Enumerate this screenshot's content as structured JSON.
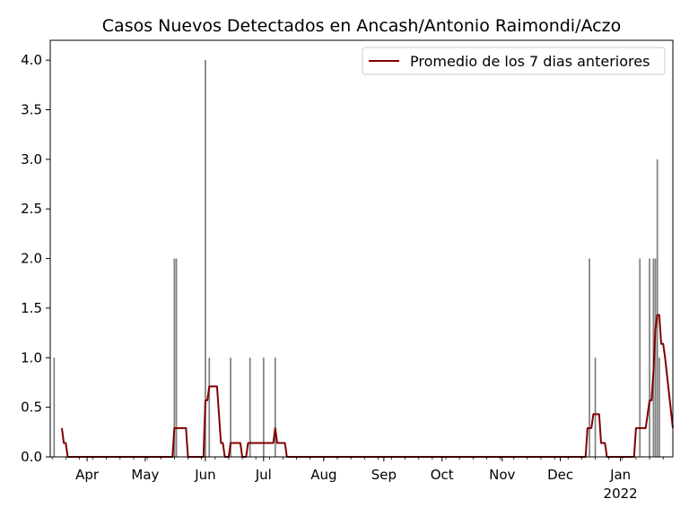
{
  "chart_data": {
    "type": "bar",
    "title": "Casos Nuevos Detectados en Ancash/Antonio Raimondi/Aczo",
    "xlabel": "",
    "ylabel": "",
    "ylim": [
      0,
      4.2
    ],
    "xlim": [
      "2021-03-13",
      "2022-01-28"
    ],
    "y_ticks": [
      "0.0",
      "0.5",
      "1.0",
      "1.5",
      "2.0",
      "2.5",
      "3.0",
      "3.5",
      "4.0"
    ],
    "x_ticks": [
      {
        "date": "2021-04-01",
        "label": "Apr"
      },
      {
        "date": "2021-05-01",
        "label": "May"
      },
      {
        "date": "2021-06-01",
        "label": "Jun"
      },
      {
        "date": "2021-07-01",
        "label": "Jul"
      },
      {
        "date": "2021-08-01",
        "label": "Aug"
      },
      {
        "date": "2021-09-01",
        "label": "Sep"
      },
      {
        "date": "2021-10-01",
        "label": "Oct"
      },
      {
        "date": "2021-11-01",
        "label": "Nov"
      },
      {
        "date": "2021-12-01",
        "label": "Dec"
      },
      {
        "date": "2022-01-01",
        "label": "Jan\n2022"
      }
    ],
    "legend": {
      "position": "top-right",
      "label": "Promedio de los 7 dias anteriores"
    },
    "colors": {
      "bars": "#808080",
      "line": "#800000"
    },
    "bars": [
      {
        "x": "2021-03-15",
        "y": 1
      },
      {
        "x": "2021-05-16",
        "y": 2
      },
      {
        "x": "2021-05-17",
        "y": 2
      },
      {
        "x": "2021-06-01",
        "y": 4
      },
      {
        "x": "2021-06-03",
        "y": 1
      },
      {
        "x": "2021-06-14",
        "y": 1
      },
      {
        "x": "2021-06-24",
        "y": 1
      },
      {
        "x": "2021-07-01",
        "y": 1
      },
      {
        "x": "2021-07-07",
        "y": 1
      },
      {
        "x": "2021-12-16",
        "y": 2
      },
      {
        "x": "2021-12-19",
        "y": 1
      },
      {
        "x": "2022-01-11",
        "y": 2
      },
      {
        "x": "2022-01-16",
        "y": 2
      },
      {
        "x": "2022-01-18",
        "y": 2
      },
      {
        "x": "2022-01-19",
        "y": 2
      },
      {
        "x": "2022-01-20",
        "y": 3
      },
      {
        "x": "2022-01-21",
        "y": 1
      }
    ],
    "series": [
      {
        "name": "Promedio de los 7 dias anteriores",
        "x": [
          "2021-03-19",
          "2021-03-20",
          "2021-03-21",
          "2021-03-22",
          "2021-05-15",
          "2021-05-16",
          "2021-05-22",
          "2021-05-23",
          "2021-05-31",
          "2021-06-01",
          "2021-06-02",
          "2021-06-03",
          "2021-06-07",
          "2021-06-08",
          "2021-06-09",
          "2021-06-10",
          "2021-06-11",
          "2021-06-13",
          "2021-06-14",
          "2021-06-19",
          "2021-06-20",
          "2021-06-22",
          "2021-06-23",
          "2021-06-24",
          "2021-07-06",
          "2021-07-07",
          "2021-07-08",
          "2021-07-12",
          "2021-07-13",
          "2021-12-14",
          "2021-12-15",
          "2021-12-17",
          "2021-12-18",
          "2021-12-21",
          "2021-12-22",
          "2021-12-24",
          "2021-12-25",
          "2022-01-08",
          "2022-01-09",
          "2022-01-13",
          "2022-01-14",
          "2022-01-16",
          "2022-01-17",
          "2022-01-18",
          "2022-01-19",
          "2022-01-20",
          "2022-01-21",
          "2022-01-22",
          "2022-01-23",
          "2022-01-24",
          "2022-01-28"
        ],
        "values": [
          0.29,
          0.14,
          0.14,
          0,
          0,
          0.29,
          0.29,
          0,
          0,
          0.57,
          0.57,
          0.71,
          0.71,
          0.43,
          0.14,
          0.14,
          0,
          0,
          0.14,
          0.14,
          0,
          0,
          0.14,
          0.14,
          0.14,
          0.29,
          0.14,
          0.14,
          0,
          0,
          0.29,
          0.29,
          0.43,
          0.43,
          0.14,
          0.14,
          0,
          0,
          0.29,
          0.29,
          0.29,
          0.57,
          0.57,
          0.86,
          1.29,
          1.43,
          1.43,
          1.14,
          1.14,
          1.0,
          0.29
        ]
      }
    ],
    "grid": false
  }
}
